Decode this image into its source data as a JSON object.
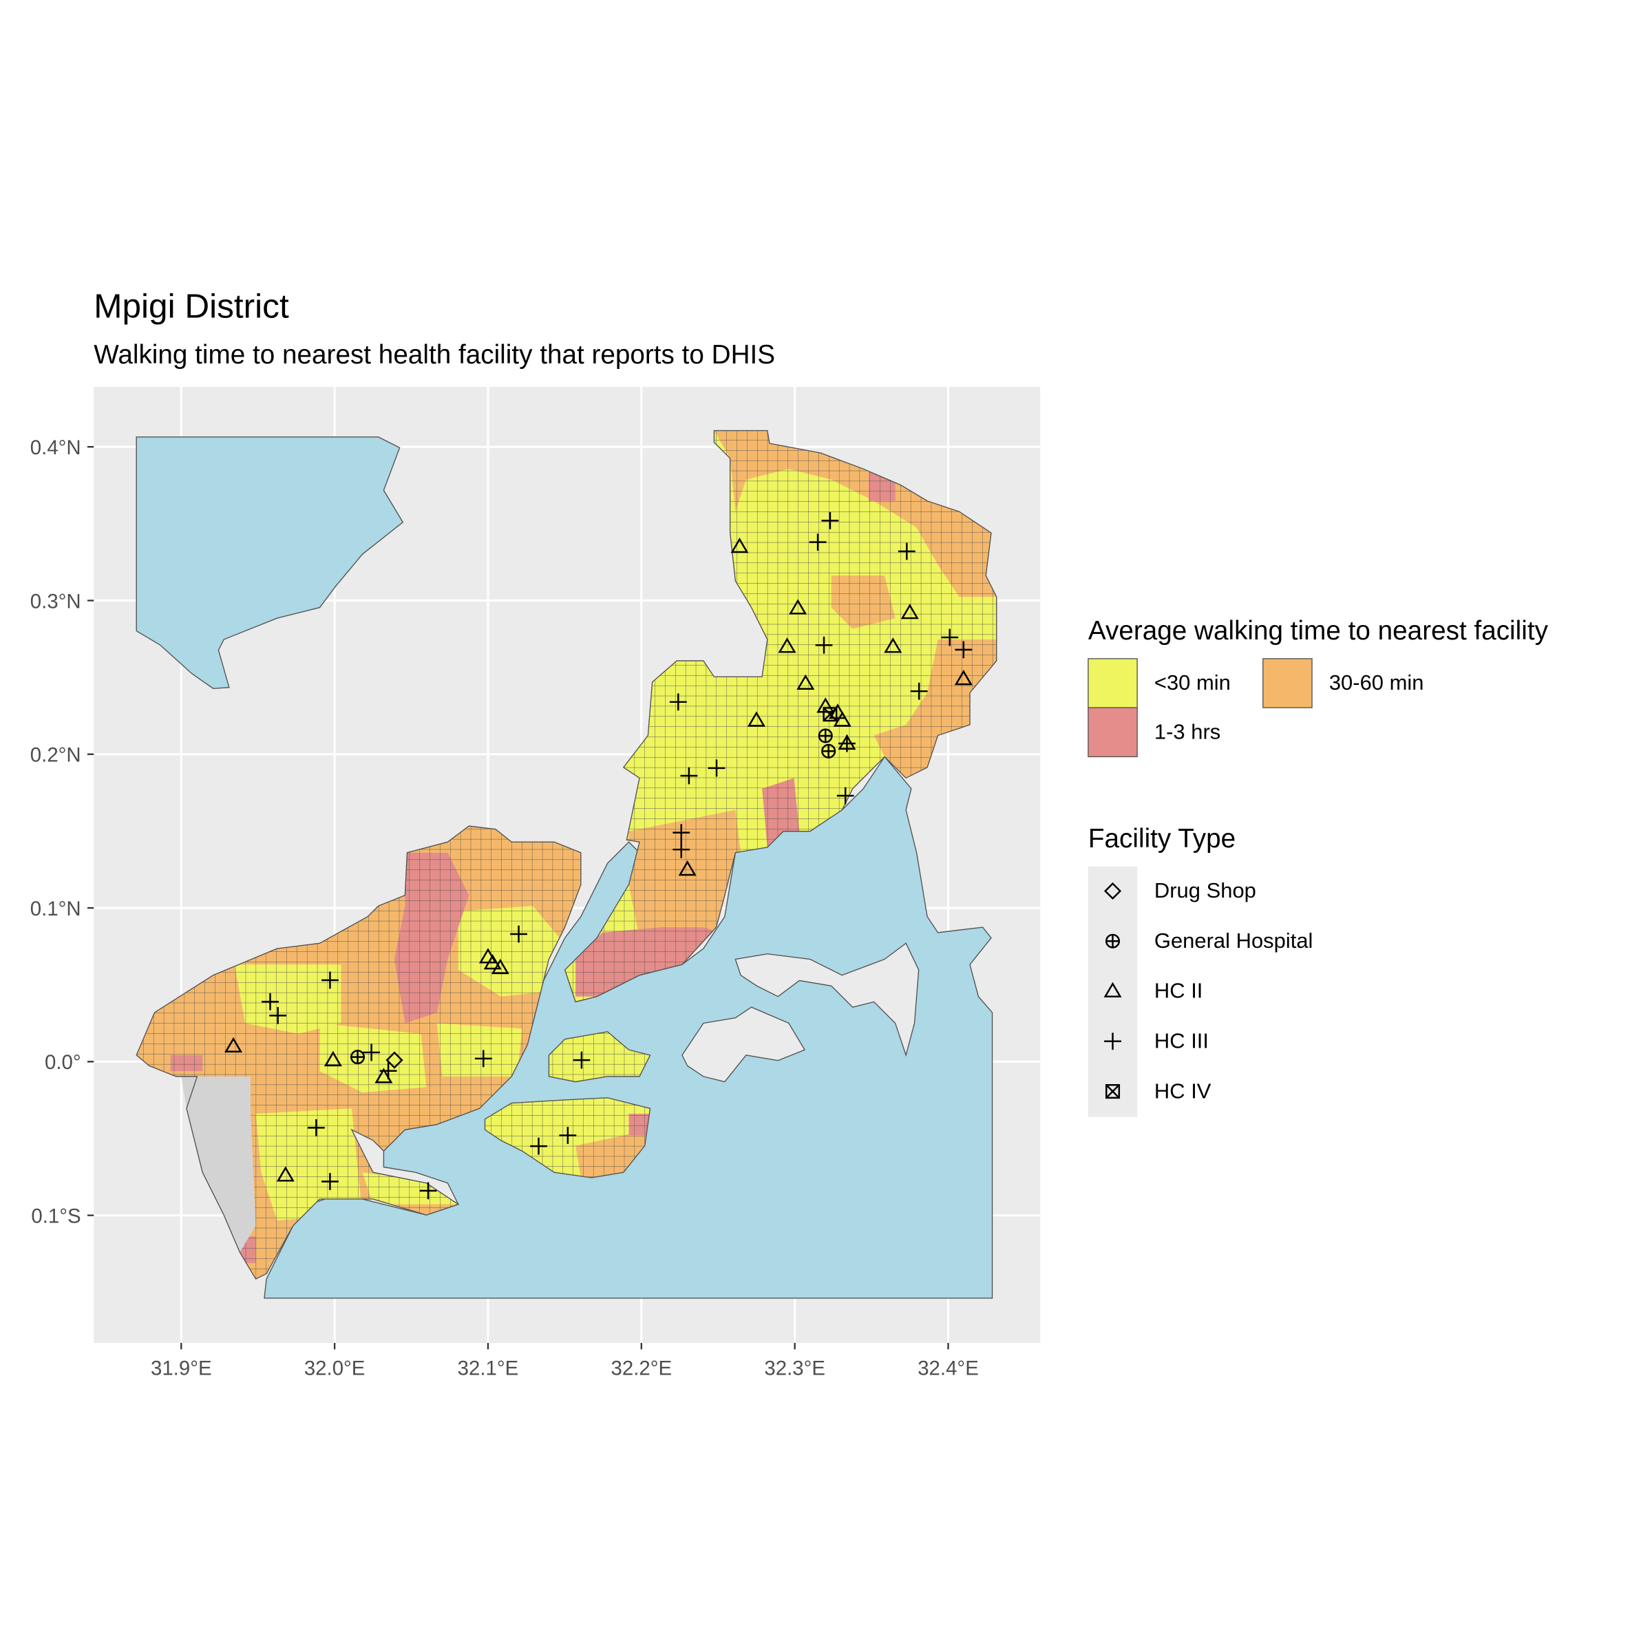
{
  "chart_data": {
    "type": "map",
    "title": "Mpigi District",
    "subtitle": "Walking time to nearest health facility that reports to DHIS",
    "xlim": [
      31.843,
      32.46
    ],
    "ylim": [
      -0.183,
      0.439
    ],
    "xticks": [
      {
        "value": 31.9,
        "label": "31.9°E"
      },
      {
        "value": 32.0,
        "label": "32.0°E"
      },
      {
        "value": 32.1,
        "label": "32.1°E"
      },
      {
        "value": 32.2,
        "label": "32.2°E"
      },
      {
        "value": 32.3,
        "label": "32.3°E"
      },
      {
        "value": 32.4,
        "label": "32.4°E"
      }
    ],
    "yticks": [
      {
        "value": -0.1,
        "label": "0.1°S"
      },
      {
        "value": 0.0,
        "label": "0.0°"
      },
      {
        "value": 0.1,
        "label": "0.1°N"
      },
      {
        "value": 0.2,
        "label": "0.2°N"
      },
      {
        "value": 0.3,
        "label": "0.3°N"
      },
      {
        "value": 0.4,
        "label": "0.4°N"
      }
    ],
    "grid": true,
    "fill_legend": {
      "title": "Average walking time to nearest facility",
      "categories": [
        {
          "name": "<30 min",
          "color": "#eef55e"
        },
        {
          "name": "30-60 min",
          "color": "#f5b86a"
        },
        {
          "name": "1-3 hrs",
          "color": "#e48d8a"
        }
      ]
    },
    "shape_legend_title": "Facility Type",
    "series": [
      {
        "name": "Drug Shop",
        "shape": "diamond",
        "x": [
          32.039
        ],
        "y": [
          0.001
        ]
      },
      {
        "name": "General Hospital",
        "shape": "circle-plus",
        "x": [
          32.32,
          32.322,
          32.015
        ],
        "y": [
          0.212,
          0.202,
          0.003
        ]
      },
      {
        "name": "HC II",
        "shape": "triangle",
        "x": [
          32.264,
          32.302,
          32.295,
          32.375,
          32.364,
          32.307,
          32.275,
          32.41,
          32.32,
          32.328,
          32.331,
          32.334,
          32.23,
          32.1,
          32.103,
          32.108,
          31.934,
          31.999,
          32.032,
          31.968
        ],
        "y": [
          0.335,
          0.295,
          0.27,
          0.292,
          0.27,
          0.246,
          0.222,
          0.249,
          0.231,
          0.227,
          0.222,
          0.207,
          0.125,
          0.068,
          0.064,
          0.061,
          0.01,
          0.001,
          -0.01,
          -0.074
        ]
      },
      {
        "name": "HC III",
        "shape": "plus",
        "x": [
          32.323,
          32.315,
          32.373,
          32.224,
          32.231,
          32.249,
          32.226,
          32.226,
          32.319,
          32.381,
          32.401,
          32.41,
          32.333,
          32.334,
          32.12,
          31.997,
          31.958,
          31.963,
          32.024,
          32.035,
          32.097,
          32.161,
          31.988,
          31.997,
          32.061,
          32.152,
          32.133
        ],
        "y": [
          0.352,
          0.338,
          0.332,
          0.234,
          0.186,
          0.191,
          0.149,
          0.138,
          0.271,
          0.241,
          0.276,
          0.268,
          0.173,
          0.207,
          0.083,
          0.053,
          0.039,
          0.03,
          0.006,
          -0.006,
          0.002,
          0.001,
          -0.043,
          -0.078,
          -0.084,
          -0.048,
          -0.055
        ]
      },
      {
        "name": "HC IV",
        "shape": "square-cross",
        "x": [
          32.323
        ],
        "y": [
          0.226
        ]
      }
    ]
  }
}
